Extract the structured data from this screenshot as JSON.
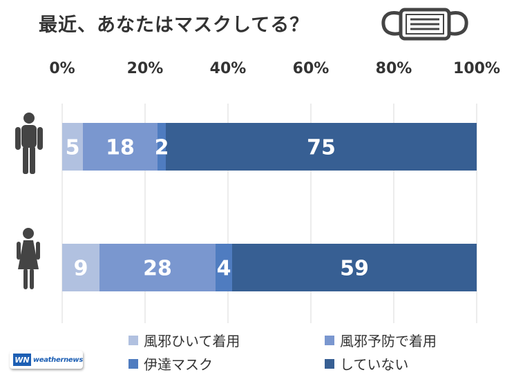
{
  "title": "最近、あなたはマスクしてる？",
  "logo": {
    "mark": "WN",
    "name": "weathernews"
  },
  "chart_data": {
    "type": "bar",
    "orientation": "horizontal",
    "stacked": true,
    "percent": true,
    "title": "最近、あなたはマスクしてる？",
    "xlim": [
      0,
      100
    ],
    "xticks": [
      "0%",
      "20%",
      "40%",
      "60%",
      "80%",
      "100%"
    ],
    "grid": true,
    "legend_position": "bottom",
    "categories": [
      "male",
      "female"
    ],
    "category_icons": [
      "male-figure-icon",
      "female-figure-icon"
    ],
    "series": [
      {
        "name": "風邪ひいて着用",
        "color": "#b1c1e0",
        "values": [
          5,
          9
        ]
      },
      {
        "name": "風邪予防で着用",
        "color": "#7a97cf",
        "values": [
          18,
          28
        ]
      },
      {
        "name": "伊達マスク",
        "color": "#4f7cc0",
        "values": [
          2,
          4
        ]
      },
      {
        "name": "していない",
        "color": "#375f93",
        "values": [
          75,
          59
        ]
      }
    ]
  }
}
